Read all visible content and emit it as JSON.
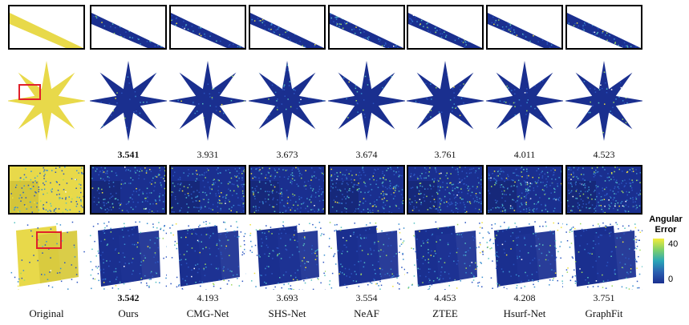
{
  "columns": [
    "Original",
    "Ours",
    "CMG-Net",
    "SHS-Net",
    "NeAF",
    "ZTEE",
    "Hsurf-Net",
    "GraphFit"
  ],
  "row1_scores": [
    {
      "value": "3.541",
      "best": true
    },
    {
      "value": "3.931",
      "best": false
    },
    {
      "value": "3.673",
      "best": false
    },
    {
      "value": "3.674",
      "best": false
    },
    {
      "value": "3.761",
      "best": false
    },
    {
      "value": "4.011",
      "best": false
    },
    {
      "value": "4.523",
      "best": false
    }
  ],
  "row2_scores": [
    {
      "value": "3.542",
      "best": true
    },
    {
      "value": "4.193",
      "best": false
    },
    {
      "value": "3.693",
      "best": false
    },
    {
      "value": "3.554",
      "best": false
    },
    {
      "value": "4.453",
      "best": false
    },
    {
      "value": "4.208",
      "best": false
    },
    {
      "value": "3.751",
      "best": false
    }
  ],
  "colorbar": {
    "title_line1": "Angular",
    "title_line2": "Error",
    "max": "40",
    "min": "0"
  },
  "colors": {
    "original": "#e8d94a",
    "error_base": "#1a2f8f",
    "highlight": "#e0202a"
  }
}
